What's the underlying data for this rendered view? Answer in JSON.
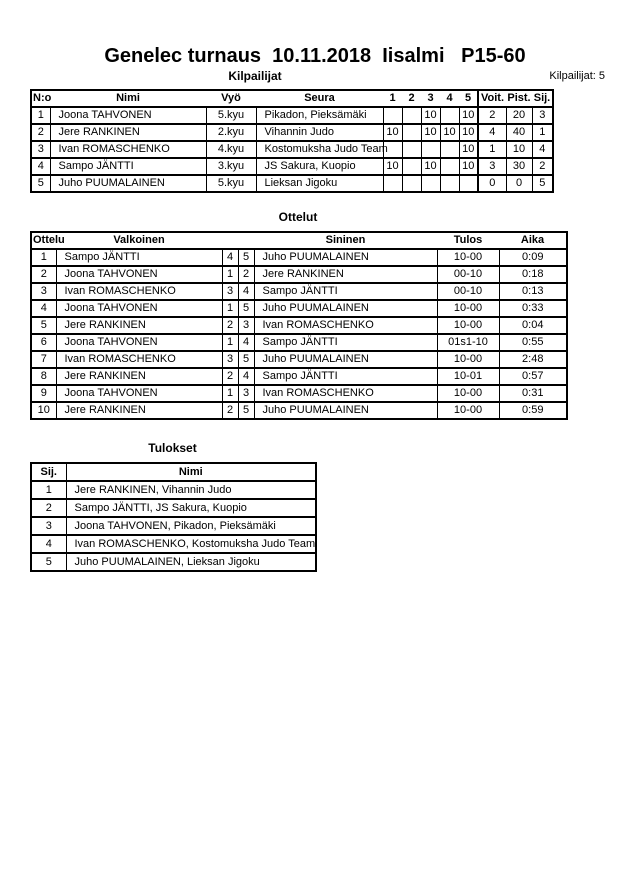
{
  "colors": {
    "text": "#000000",
    "background": "#ffffff",
    "border": "#000000"
  },
  "page": {
    "title": "Genelec turnaus  10.11.2018  Iisalmi   P15-60",
    "competitors_count": "Kilpailijat: 5"
  },
  "kilpailijat": {
    "heading": "Kilpailijat",
    "columns": [
      "N:o",
      "Nimi",
      "Vyö",
      "Seura",
      "1",
      "2",
      "3",
      "4",
      "5",
      "Voit.",
      "Pist.",
      "Sij."
    ],
    "rows": [
      {
        "no": "1",
        "nimi": "Joona TAHVONEN",
        "vyo": "5.kyu",
        "seura": "Pikadon, Pieksämäki",
        "c1": "",
        "c2": "",
        "c3": "10",
        "c4": "",
        "c5": "10",
        "voit": "2",
        "pist": "20",
        "sij": "3"
      },
      {
        "no": "2",
        "nimi": "Jere RANKINEN",
        "vyo": "2.kyu",
        "seura": "Vihannin Judo",
        "c1": "10",
        "c2": "",
        "c3": "10",
        "c4": "10",
        "c5": "10",
        "voit": "4",
        "pist": "40",
        "sij": "1"
      },
      {
        "no": "3",
        "nimi": "Ivan ROMASCHENKO",
        "vyo": "4.kyu",
        "seura": "Kostomuksha Judo Team",
        "c1": "",
        "c2": "",
        "c3": "",
        "c4": "",
        "c5": "10",
        "voit": "1",
        "pist": "10",
        "sij": "4"
      },
      {
        "no": "4",
        "nimi": "Sampo JÄNTTI",
        "vyo": "3.kyu",
        "seura": "JS Sakura, Kuopio",
        "c1": "10",
        "c2": "",
        "c3": "10",
        "c4": "",
        "c5": "10",
        "voit": "3",
        "pist": "30",
        "sij": "2"
      },
      {
        "no": "5",
        "nimi": "Juho PUUMALAINEN",
        "vyo": "5.kyu",
        "seura": "Lieksan Jigoku",
        "c1": "",
        "c2": "",
        "c3": "",
        "c4": "",
        "c5": "",
        "voit": "0",
        "pist": "0",
        "sij": "5"
      }
    ]
  },
  "ottelut": {
    "heading": "Ottelut",
    "columns": [
      "Ottelu",
      "Valkoinen",
      "Sininen",
      "Tulos",
      "Aika"
    ],
    "rows": [
      {
        "ottelu": "1",
        "valkoinen": "Sampo JÄNTTI",
        "wno": "4",
        "bno": "5",
        "sininen": "Juho PUUMALAINEN",
        "tulos": "10-00",
        "aika": "0:09"
      },
      {
        "ottelu": "2",
        "valkoinen": "Joona TAHVONEN",
        "wno": "1",
        "bno": "2",
        "sininen": "Jere RANKINEN",
        "tulos": "00-10",
        "aika": "0:18"
      },
      {
        "ottelu": "3",
        "valkoinen": "Ivan ROMASCHENKO",
        "wno": "3",
        "bno": "4",
        "sininen": "Sampo JÄNTTI",
        "tulos": "00-10",
        "aika": "0:13"
      },
      {
        "ottelu": "4",
        "valkoinen": "Joona TAHVONEN",
        "wno": "1",
        "bno": "5",
        "sininen": "Juho PUUMALAINEN",
        "tulos": "10-00",
        "aika": "0:33"
      },
      {
        "ottelu": "5",
        "valkoinen": "Jere RANKINEN",
        "wno": "2",
        "bno": "3",
        "sininen": "Ivan ROMASCHENKO",
        "tulos": "10-00",
        "aika": "0:04"
      },
      {
        "ottelu": "6",
        "valkoinen": "Joona TAHVONEN",
        "wno": "1",
        "bno": "4",
        "sininen": "Sampo JÄNTTI",
        "tulos": "01s1-10",
        "aika": "0:55"
      },
      {
        "ottelu": "7",
        "valkoinen": "Ivan ROMASCHENKO",
        "wno": "3",
        "bno": "5",
        "sininen": "Juho PUUMALAINEN",
        "tulos": "10-00",
        "aika": "2:48"
      },
      {
        "ottelu": "8",
        "valkoinen": "Jere RANKINEN",
        "wno": "2",
        "bno": "4",
        "sininen": "Sampo JÄNTTI",
        "tulos": "10-01",
        "aika": "0:57"
      },
      {
        "ottelu": "9",
        "valkoinen": "Joona TAHVONEN",
        "wno": "1",
        "bno": "3",
        "sininen": "Ivan ROMASCHENKO",
        "tulos": "10-00",
        "aika": "0:31"
      },
      {
        "ottelu": "10",
        "valkoinen": "Jere RANKINEN",
        "wno": "2",
        "bno": "5",
        "sininen": "Juho PUUMALAINEN",
        "tulos": "10-00",
        "aika": "0:59"
      }
    ]
  },
  "tulokset": {
    "heading": "Tulokset",
    "columns": [
      "Sij.",
      "Nimi"
    ],
    "rows": [
      {
        "sij": "1",
        "nimi": "Jere RANKINEN, Vihannin Judo"
      },
      {
        "sij": "2",
        "nimi": "Sampo JÄNTTI, JS Sakura, Kuopio"
      },
      {
        "sij": "3",
        "nimi": "Joona TAHVONEN, Pikadon, Pieksämäki"
      },
      {
        "sij": "4",
        "nimi": "Ivan ROMASCHENKO, Kostomuksha Judo Team"
      },
      {
        "sij": "5",
        "nimi": "Juho PUUMALAINEN, Lieksan Jigoku"
      }
    ]
  }
}
